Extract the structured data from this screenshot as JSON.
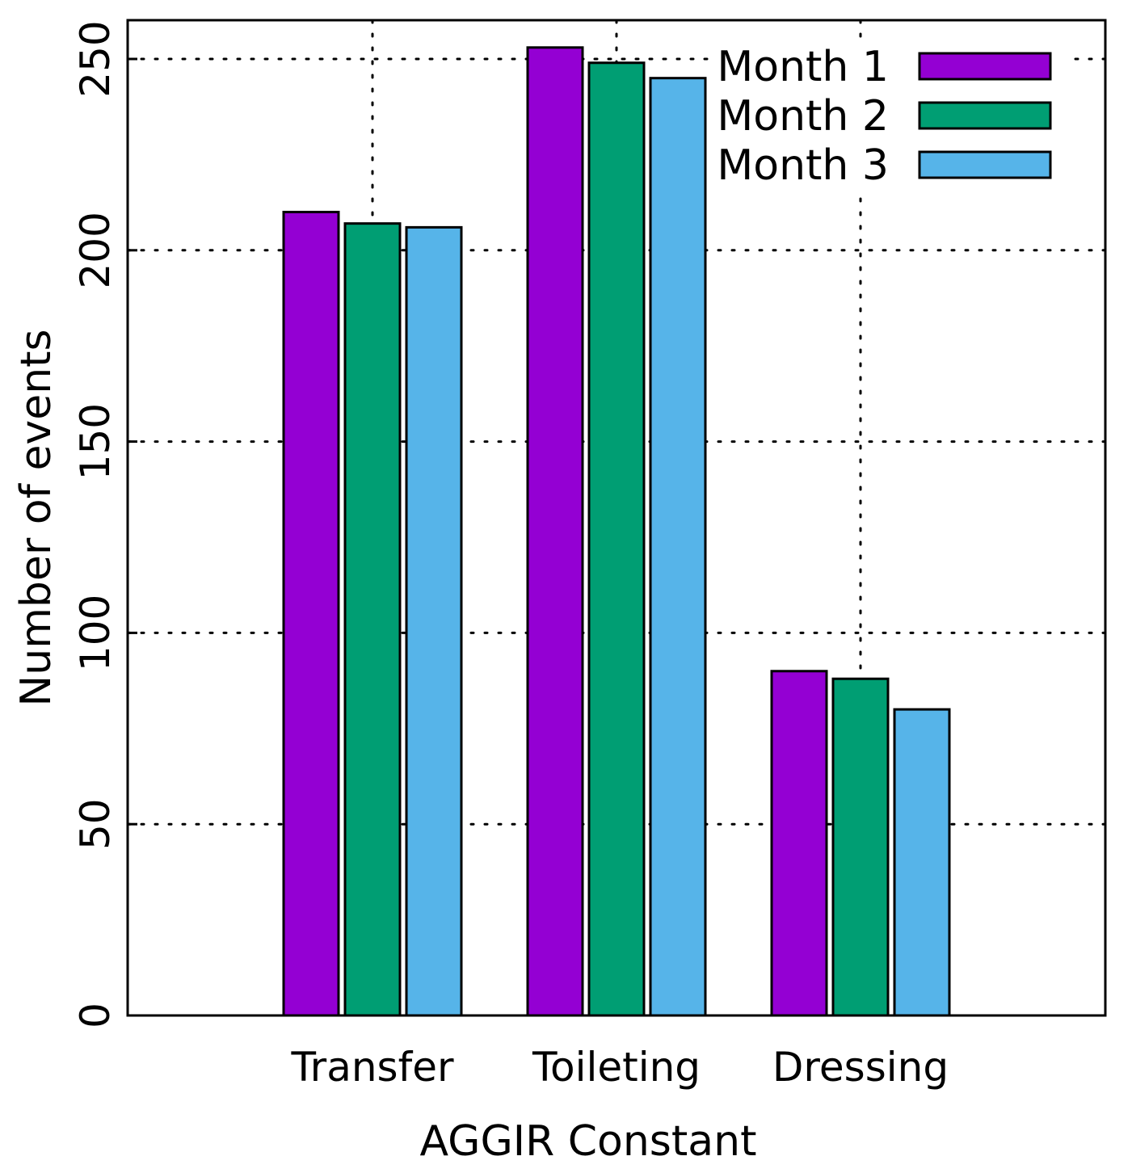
{
  "chart_data": {
    "type": "bar",
    "title": "",
    "xlabel": "AGGIR Constant",
    "ylabel": "Number of events",
    "categories": [
      "Transfer",
      "Toileting",
      "Dressing"
    ],
    "series": [
      {
        "name": "Month 1",
        "color": "#9400d3",
        "values": [
          210,
          253,
          90
        ]
      },
      {
        "name": "Month 2",
        "color": "#009e73",
        "values": [
          207,
          249,
          88
        ]
      },
      {
        "name": "Month 3",
        "color": "#56b4e9",
        "values": [
          206,
          245,
          80
        ]
      }
    ],
    "ylim": [
      0,
      260
    ],
    "yticks": [
      0,
      50,
      100,
      150,
      200,
      250
    ],
    "ytick_labels": [
      "0",
      "50",
      "100",
      "150",
      "200",
      "250"
    ],
    "grid": true,
    "legend_position": "top-right"
  }
}
